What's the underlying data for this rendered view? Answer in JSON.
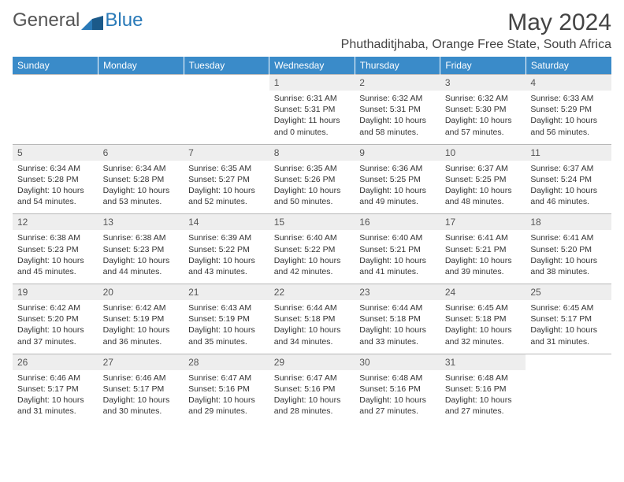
{
  "logo": {
    "text1": "General",
    "text2": "Blue"
  },
  "title": "May 2024",
  "location": "Phuthaditjhaba, Orange Free State, South Africa",
  "colors": {
    "header_bg": "#3a8bc9",
    "header_text": "#ffffff",
    "daynum_bg": "#eeeeee",
    "border": "#b8b8b8",
    "logo_blue": "#2a7ab8",
    "body_text": "#333333"
  },
  "weekdays": [
    "Sunday",
    "Monday",
    "Tuesday",
    "Wednesday",
    "Thursday",
    "Friday",
    "Saturday"
  ],
  "weeks": [
    [
      null,
      null,
      null,
      {
        "n": "1",
        "sr": "6:31 AM",
        "ss": "5:31 PM",
        "dl": "11 hours and 0 minutes."
      },
      {
        "n": "2",
        "sr": "6:32 AM",
        "ss": "5:31 PM",
        "dl": "10 hours and 58 minutes."
      },
      {
        "n": "3",
        "sr": "6:32 AM",
        "ss": "5:30 PM",
        "dl": "10 hours and 57 minutes."
      },
      {
        "n": "4",
        "sr": "6:33 AM",
        "ss": "5:29 PM",
        "dl": "10 hours and 56 minutes."
      }
    ],
    [
      {
        "n": "5",
        "sr": "6:34 AM",
        "ss": "5:28 PM",
        "dl": "10 hours and 54 minutes."
      },
      {
        "n": "6",
        "sr": "6:34 AM",
        "ss": "5:28 PM",
        "dl": "10 hours and 53 minutes."
      },
      {
        "n": "7",
        "sr": "6:35 AM",
        "ss": "5:27 PM",
        "dl": "10 hours and 52 minutes."
      },
      {
        "n": "8",
        "sr": "6:35 AM",
        "ss": "5:26 PM",
        "dl": "10 hours and 50 minutes."
      },
      {
        "n": "9",
        "sr": "6:36 AM",
        "ss": "5:25 PM",
        "dl": "10 hours and 49 minutes."
      },
      {
        "n": "10",
        "sr": "6:37 AM",
        "ss": "5:25 PM",
        "dl": "10 hours and 48 minutes."
      },
      {
        "n": "11",
        "sr": "6:37 AM",
        "ss": "5:24 PM",
        "dl": "10 hours and 46 minutes."
      }
    ],
    [
      {
        "n": "12",
        "sr": "6:38 AM",
        "ss": "5:23 PM",
        "dl": "10 hours and 45 minutes."
      },
      {
        "n": "13",
        "sr": "6:38 AM",
        "ss": "5:23 PM",
        "dl": "10 hours and 44 minutes."
      },
      {
        "n": "14",
        "sr": "6:39 AM",
        "ss": "5:22 PM",
        "dl": "10 hours and 43 minutes."
      },
      {
        "n": "15",
        "sr": "6:40 AM",
        "ss": "5:22 PM",
        "dl": "10 hours and 42 minutes."
      },
      {
        "n": "16",
        "sr": "6:40 AM",
        "ss": "5:21 PM",
        "dl": "10 hours and 41 minutes."
      },
      {
        "n": "17",
        "sr": "6:41 AM",
        "ss": "5:21 PM",
        "dl": "10 hours and 39 minutes."
      },
      {
        "n": "18",
        "sr": "6:41 AM",
        "ss": "5:20 PM",
        "dl": "10 hours and 38 minutes."
      }
    ],
    [
      {
        "n": "19",
        "sr": "6:42 AM",
        "ss": "5:20 PM",
        "dl": "10 hours and 37 minutes."
      },
      {
        "n": "20",
        "sr": "6:42 AM",
        "ss": "5:19 PM",
        "dl": "10 hours and 36 minutes."
      },
      {
        "n": "21",
        "sr": "6:43 AM",
        "ss": "5:19 PM",
        "dl": "10 hours and 35 minutes."
      },
      {
        "n": "22",
        "sr": "6:44 AM",
        "ss": "5:18 PM",
        "dl": "10 hours and 34 minutes."
      },
      {
        "n": "23",
        "sr": "6:44 AM",
        "ss": "5:18 PM",
        "dl": "10 hours and 33 minutes."
      },
      {
        "n": "24",
        "sr": "6:45 AM",
        "ss": "5:18 PM",
        "dl": "10 hours and 32 minutes."
      },
      {
        "n": "25",
        "sr": "6:45 AM",
        "ss": "5:17 PM",
        "dl": "10 hours and 31 minutes."
      }
    ],
    [
      {
        "n": "26",
        "sr": "6:46 AM",
        "ss": "5:17 PM",
        "dl": "10 hours and 31 minutes."
      },
      {
        "n": "27",
        "sr": "6:46 AM",
        "ss": "5:17 PM",
        "dl": "10 hours and 30 minutes."
      },
      {
        "n": "28",
        "sr": "6:47 AM",
        "ss": "5:16 PM",
        "dl": "10 hours and 29 minutes."
      },
      {
        "n": "29",
        "sr": "6:47 AM",
        "ss": "5:16 PM",
        "dl": "10 hours and 28 minutes."
      },
      {
        "n": "30",
        "sr": "6:48 AM",
        "ss": "5:16 PM",
        "dl": "10 hours and 27 minutes."
      },
      {
        "n": "31",
        "sr": "6:48 AM",
        "ss": "5:16 PM",
        "dl": "10 hours and 27 minutes."
      },
      null
    ]
  ],
  "labels": {
    "sunrise": "Sunrise:",
    "sunset": "Sunset:",
    "daylight": "Daylight:"
  }
}
